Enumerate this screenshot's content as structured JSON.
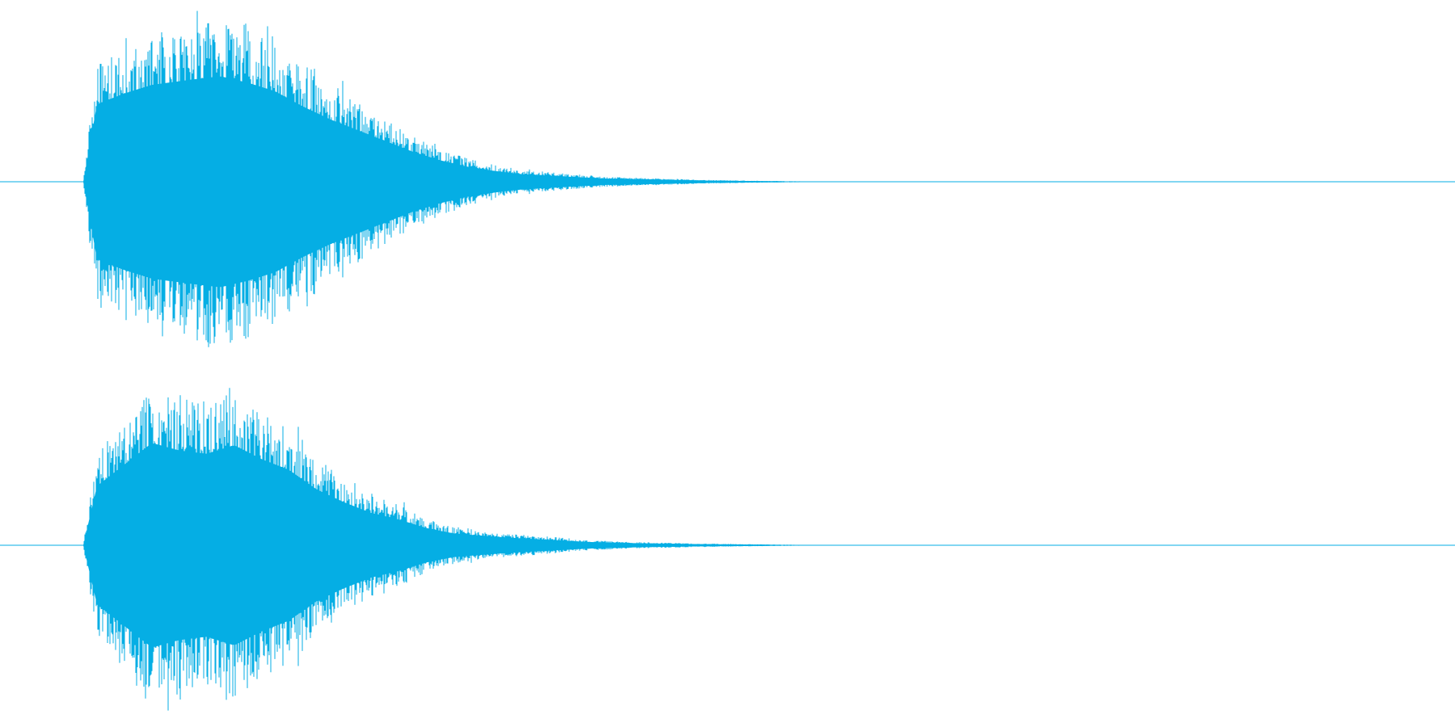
{
  "waveform": {
    "color": "#05AEE4",
    "channels": [
      {
        "name": "left",
        "envelope": [
          [
            0.0,
            0.0
          ],
          [
            0.01,
            0.72
          ],
          [
            0.03,
            0.82
          ],
          [
            0.05,
            0.9
          ],
          [
            0.08,
            0.95
          ],
          [
            0.1,
            0.98
          ],
          [
            0.12,
            0.92
          ],
          [
            0.14,
            0.84
          ],
          [
            0.16,
            0.7
          ],
          [
            0.18,
            0.58
          ],
          [
            0.2,
            0.48
          ],
          [
            0.22,
            0.38
          ],
          [
            0.24,
            0.28
          ],
          [
            0.26,
            0.2
          ],
          [
            0.28,
            0.14
          ],
          [
            0.3,
            0.1
          ],
          [
            0.32,
            0.07
          ],
          [
            0.35,
            0.05
          ],
          [
            0.38,
            0.03
          ],
          [
            0.42,
            0.02
          ],
          [
            0.46,
            0.01
          ],
          [
            0.5,
            0.005
          ],
          [
            0.55,
            0.0
          ],
          [
            1.0,
            0.0
          ]
        ]
      },
      {
        "name": "right",
        "envelope": [
          [
            0.0,
            0.0
          ],
          [
            0.01,
            0.55
          ],
          [
            0.03,
            0.75
          ],
          [
            0.05,
            0.95
          ],
          [
            0.07,
            0.88
          ],
          [
            0.09,
            0.85
          ],
          [
            0.11,
            0.93
          ],
          [
            0.13,
            0.8
          ],
          [
            0.15,
            0.7
          ],
          [
            0.17,
            0.52
          ],
          [
            0.19,
            0.4
          ],
          [
            0.21,
            0.3
          ],
          [
            0.23,
            0.24
          ],
          [
            0.25,
            0.16
          ],
          [
            0.27,
            0.11
          ],
          [
            0.29,
            0.09
          ],
          [
            0.31,
            0.07
          ],
          [
            0.34,
            0.05
          ],
          [
            0.37,
            0.03
          ],
          [
            0.4,
            0.02
          ],
          [
            0.45,
            0.01
          ],
          [
            0.5,
            0.005
          ],
          [
            0.55,
            0.0
          ],
          [
            1.0,
            0.0
          ]
        ]
      }
    ]
  }
}
